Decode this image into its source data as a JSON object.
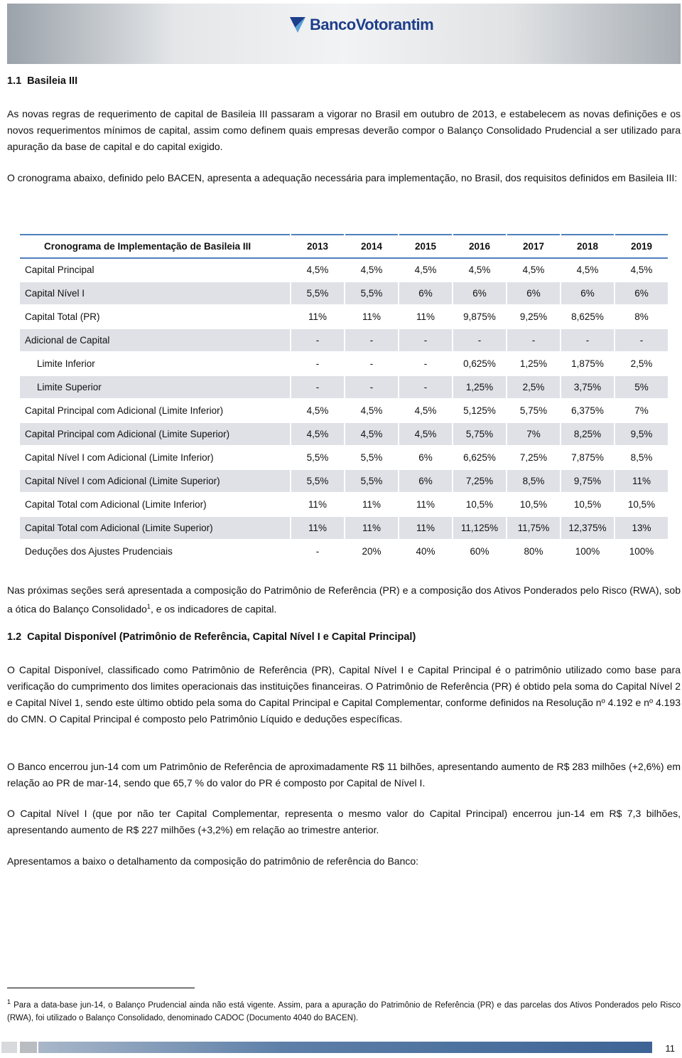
{
  "header": {
    "logo": "BancoVotorantim"
  },
  "section1": {
    "number": "1.1",
    "title": "Basileia III"
  },
  "paragraphs1": [
    "As novas regras de requerimento de capital de Basileia III passaram a vigorar no Brasil em outubro de 2013, e estabelecem as novas definições e os novos requerimentos mínimos de capital, assim como definem quais empresas deverão compor o Balanço Consolidado Prudencial a ser utilizado para apuração da base de capital e do capital exigido.",
    "O cronograma abaixo, definido pelo BACEN, apresenta a adequação necessária para implementação, no Brasil, dos requisitos definidos em Basileia III:"
  ],
  "table": {
    "header": [
      "Cronograma de Implementação de Basileia III",
      "2013",
      "2014",
      "2015",
      "2016",
      "2017",
      "2018",
      "2019"
    ],
    "rows": [
      [
        "Capital Principal",
        "4,5%",
        "4,5%",
        "4,5%",
        "4,5%",
        "4,5%",
        "4,5%",
        "4,5%"
      ],
      [
        "Capital Nível I",
        "5,5%",
        "5,5%",
        "6%",
        "6%",
        "6%",
        "6%",
        "6%"
      ],
      [
        "Capital Total (PR)",
        "11%",
        "11%",
        "11%",
        "9,875%",
        "9,25%",
        "8,625%",
        "8%"
      ],
      [
        "Adicional de Capital",
        "-",
        "-",
        "-",
        "-",
        "-",
        "-",
        "-"
      ],
      [
        "Limite Inferior",
        "-",
        "-",
        "-",
        "0,625%",
        "1,25%",
        "1,875%",
        "2,5%"
      ],
      [
        "Limite Superior",
        "-",
        "-",
        "-",
        "1,25%",
        "2,5%",
        "3,75%",
        "5%"
      ],
      [
        "Capital Principal com Adicional (Limite Inferior)",
        "4,5%",
        "4,5%",
        "4,5%",
        "5,125%",
        "5,75%",
        "6,375%",
        "7%"
      ],
      [
        "Capital Principal com Adicional (Limite Superior)",
        "4,5%",
        "4,5%",
        "4,5%",
        "5,75%",
        "7%",
        "8,25%",
        "9,5%"
      ],
      [
        "Capital Nível I com Adicional (Limite Inferior)",
        "5,5%",
        "5,5%",
        "6%",
        "6,625%",
        "7,25%",
        "7,875%",
        "8,5%"
      ],
      [
        "Capital Nível I com Adicional (Limite Superior)",
        "5,5%",
        "5,5%",
        "6%",
        "7,25%",
        "8,5%",
        "9,75%",
        "11%"
      ],
      [
        "Capital Total com Adicional (Limite Inferior)",
        "11%",
        "11%",
        "11%",
        "10,5%",
        "10,5%",
        "10,5%",
        "10,5%"
      ],
      [
        "Capital Total com Adicional (Limite Superior)",
        "11%",
        "11%",
        "11%",
        "11,125%",
        "11,75%",
        "12,375%",
        "13%"
      ],
      [
        "Deduções dos Ajustes Prudenciais",
        "-",
        "20%",
        "40%",
        "60%",
        "80%",
        "100%",
        "100%"
      ]
    ]
  },
  "paragraph_after_table": {
    "before": "Nas próximas seções será apresentada a composição do Patrimônio de Referência (PR) e a composição dos Ativos Ponderados pelo Risco (RWA), sob a ótica do Balanço Consolidado",
    "footnote_ref": "1",
    "after": ", e os indicadores de capital."
  },
  "section2": {
    "number": "1.2",
    "title": "Capital Disponível (Patrimônio de Referência, Capital Nível I e Capital Principal)"
  },
  "paragraphs2": [
    "O Capital Disponível, classificado como Patrimônio de Referência (PR), Capital Nível I e Capital Principal é o patrimônio utilizado como base para verificação do cumprimento dos limites operacionais das instituições financeiras. O Patrimônio de Referência (PR) é obtido pela soma do Capital Nível 2 e Capital Nível 1, sendo este último obtido pela soma do Capital Principal e Capital Complementar, conforme definidos na Resolução nº 4.192 e nº 4.193 do CMN. O Capital Principal é composto pelo Patrimônio Líquido e deduções específicas.",
    "O Banco encerrou jun-14 com um Patrimônio de Referência de aproximadamente R$ 11 bilhões, apresentando aumento de R$ 283 milhões (+2,6%) em relação ao PR de mar-14, sendo que 65,7 % do valor do PR é composto por Capital de Nível I.",
    "O Capital Nível I (que por não ter Capital Complementar, representa o mesmo valor do Capital Principal) encerrou jun-14 em R$ 7,3 bilhões, apresentando aumento de R$ 227 milhões (+3,2%) em relação ao trimestre anterior.",
    "Apresentamos a baixo o detalhamento da composição do patrimônio de referência do Banco:"
  ],
  "footnote": {
    "number": "1",
    "text": "Para a data-base jun-14, o Balanço Prudencial ainda não está vigente. Assim, para a apuração do Patrimônio de Referência (PR) e das parcelas dos Ativos Ponderados pelo Risco (RWA), foi utilizado o Balanço Consolidado, denominado CADOC (Documento 4040 do BACEN)."
  },
  "page_number": "11"
}
